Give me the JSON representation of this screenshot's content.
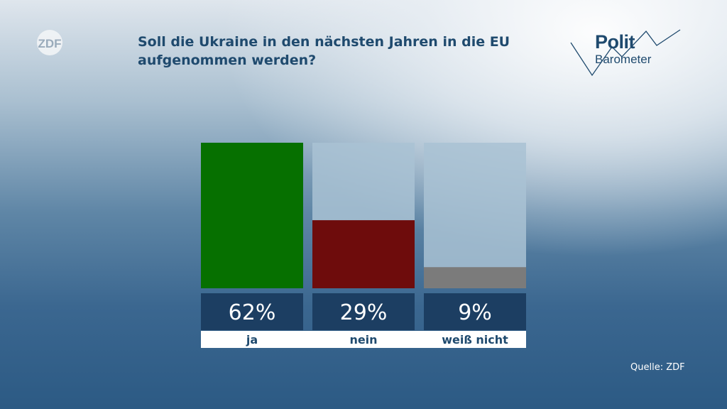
{
  "title": "Soll die Ukraine in den nächsten Jahren in die EU aufgenommen werden?",
  "brand": {
    "logo_text": "ZDF",
    "icon": "zdf-logo-icon"
  },
  "series_logo": {
    "line1": "Polit",
    "line2": "Barometer",
    "icon": "politbarometer-logo-icon"
  },
  "source": "Quelle: ZDF",
  "chart_data": {
    "type": "bar",
    "categories": [
      "ja",
      "nein",
      "weiß nicht"
    ],
    "values": [
      62,
      29,
      9
    ],
    "value_labels": [
      "62%",
      "29%",
      "9%"
    ],
    "colors": [
      "#067000",
      "#6e0c0c",
      "#7b7b7b"
    ],
    "ylim": [
      0,
      62
    ],
    "grid": false,
    "legend": "none",
    "title": "Soll die Ukraine in den nächsten Jahren in die EU aufgenommen werden?"
  }
}
